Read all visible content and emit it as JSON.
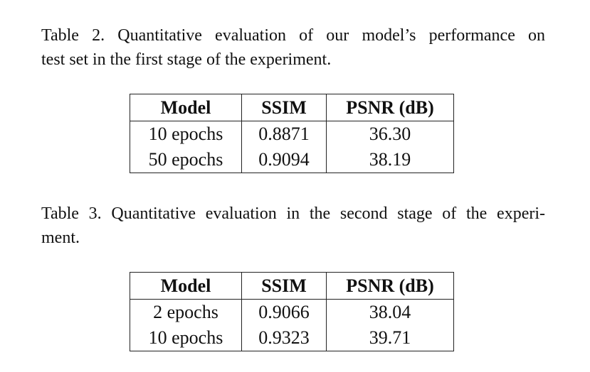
{
  "table2": {
    "caption": [
      "Table 2.  Quantitative evaluation of our model’s performance on",
      "test set in the first stage of the experiment."
    ],
    "header": [
      "Model",
      "SSIM",
      "PSNR (dB)"
    ],
    "rows": [
      [
        "10 epochs",
        "0.8871",
        "36.30"
      ],
      [
        "50 epochs",
        "0.9094",
        "38.19"
      ]
    ]
  },
  "table3": {
    "caption": [
      "Table 3. Quantitative evaluation in the second stage of the experi-",
      "ment."
    ],
    "header": [
      "Model",
      "SSIM",
      "PSNR (dB)"
    ],
    "rows": [
      [
        "2 epochs",
        "0.9066",
        "38.04"
      ],
      [
        "10 epochs",
        "0.9323",
        "39.71"
      ]
    ]
  }
}
